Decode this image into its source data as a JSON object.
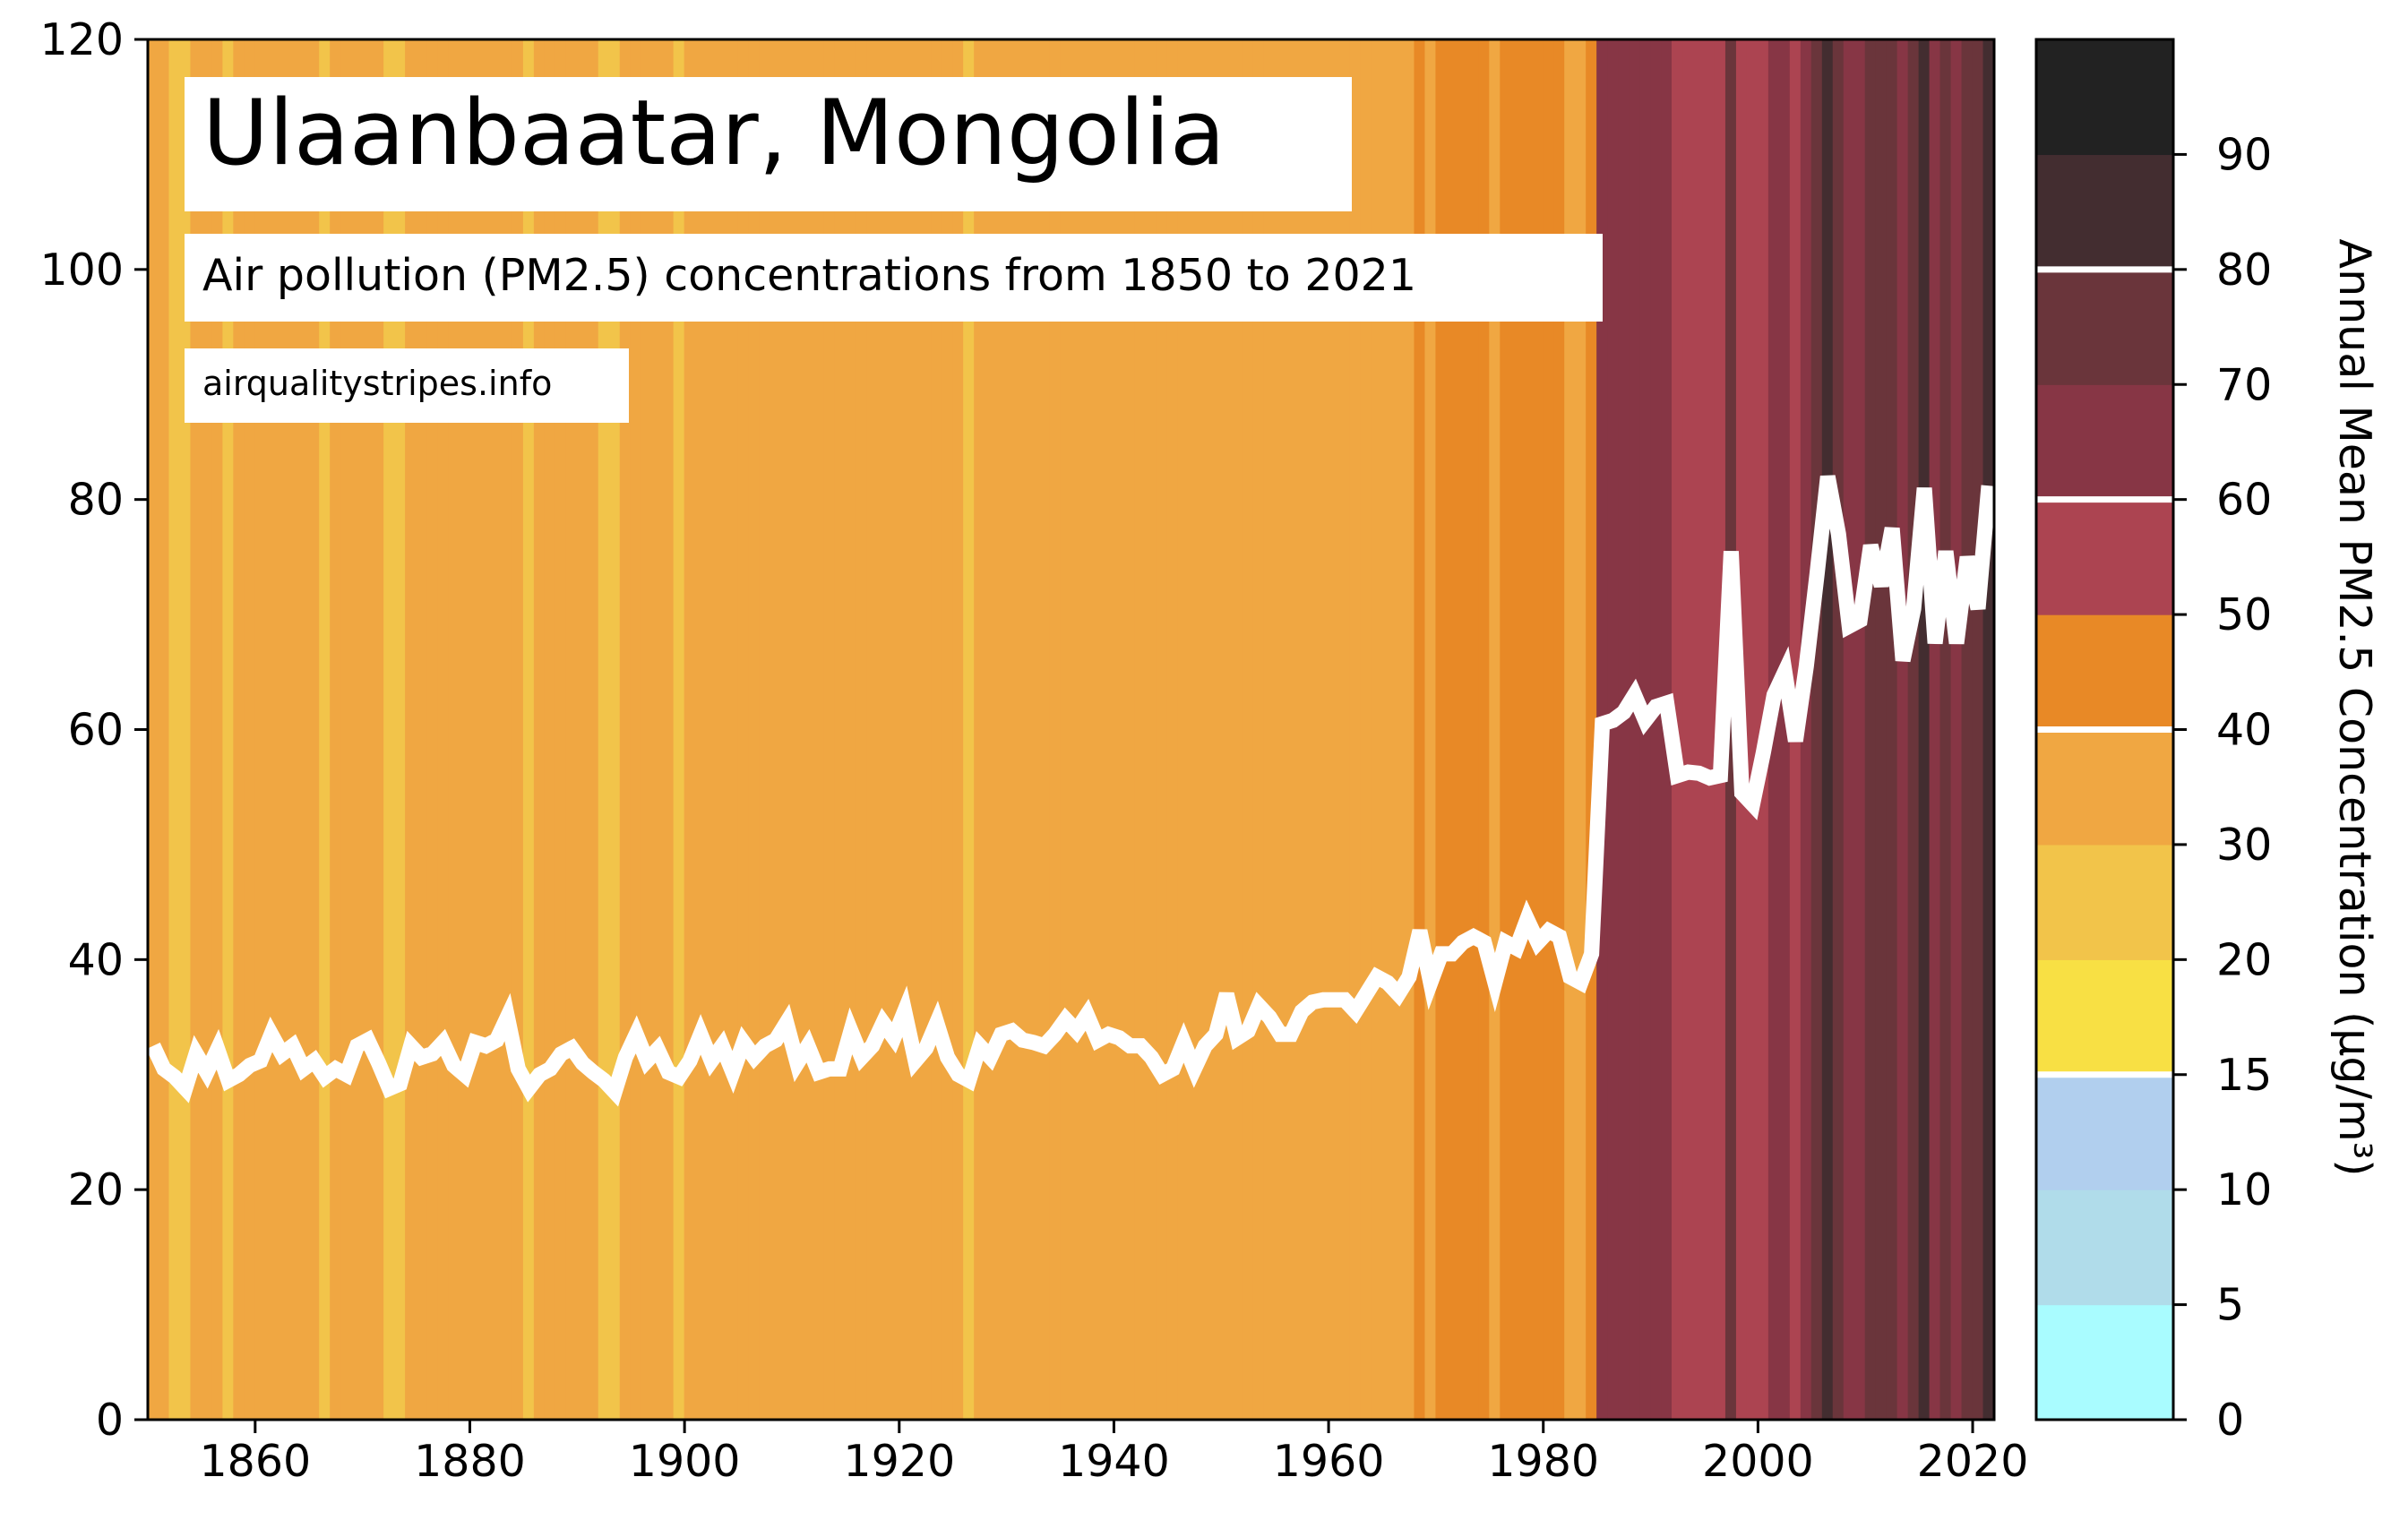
{
  "chart_data": {
    "type": "line",
    "title": "Ulaanbaatar, Mongolia",
    "subtitle": "Air pollution (PM2.5) concentrations from 1850 to 2021",
    "source": "airqualitystripes.info",
    "xlim": [
      1850,
      2022
    ],
    "ylim": [
      0,
      120
    ],
    "x_ticks": [
      "1860",
      "1880",
      "1900",
      "1920",
      "1940",
      "1960",
      "1980",
      "2000",
      "2020"
    ],
    "y_ticks": [
      "0",
      "20",
      "40",
      "60",
      "80",
      "100",
      "120"
    ],
    "grid": false,
    "line_color": "#ffffff",
    "series": [
      {
        "x": [
          1850,
          1851,
          1852,
          1853,
          1854,
          1855,
          1856,
          1857,
          1858,
          1859,
          1860,
          1861,
          1862,
          1863,
          1864,
          1865,
          1866,
          1867,
          1868,
          1869,
          1870,
          1871,
          1872,
          1873,
          1874,
          1875,
          1876,
          1877,
          1878,
          1879,
          1880,
          1881,
          1882,
          1883,
          1884,
          1885,
          1886,
          1887,
          1888,
          1889,
          1890,
          1891,
          1892,
          1893,
          1894,
          1895,
          1896,
          1897,
          1898,
          1899,
          1900,
          1901,
          1902,
          1903,
          1904,
          1905,
          1906,
          1907,
          1908,
          1909,
          1910,
          1911,
          1912,
          1913,
          1914,
          1915,
          1916,
          1917,
          1918,
          1919,
          1920,
          1921,
          1922,
          1923,
          1924,
          1925,
          1926,
          1927,
          1928,
          1929,
          1930,
          1931,
          1932,
          1933,
          1934,
          1935,
          1936,
          1937,
          1938,
          1939,
          1940,
          1941,
          1942,
          1943,
          1944,
          1945,
          1946,
          1947,
          1948,
          1949,
          1950,
          1951,
          1952,
          1953,
          1954,
          1955,
          1956,
          1957,
          1958,
          1959,
          1960,
          1961,
          1962,
          1963,
          1964,
          1965,
          1966,
          1967,
          1968,
          1969,
          1970,
          1971,
          1972,
          1973,
          1974,
          1975,
          1976,
          1977,
          1978,
          1979,
          1980,
          1981,
          1982,
          1983,
          1984,
          1985,
          1986,
          1987,
          1988,
          1989,
          1990,
          1991,
          1992,
          1993,
          1994,
          1995,
          1996,
          1997,
          1998,
          1999,
          2000,
          2001,
          2002,
          2003,
          2004,
          2005,
          2006,
          2007,
          2008,
          2009,
          2010,
          2011,
          2012,
          2013,
          2014,
          2015,
          2016,
          2017,
          2018,
          2019,
          2020,
          2021
        ],
        "values": [
          32.5,
          30.5,
          29.8,
          28.8,
          31.8,
          30.2,
          32.2,
          29.5,
          30,
          30.8,
          31.2,
          33.5,
          31.8,
          32.5,
          30.5,
          31.2,
          29.8,
          30.5,
          30,
          32.5,
          33,
          31,
          28.8,
          29.2,
          32.5,
          31.5,
          31.8,
          32.8,
          30.8,
          30,
          32.8,
          32.5,
          33,
          35,
          30.5,
          28.8,
          30,
          30.5,
          31.8,
          32.3,
          31,
          30.2,
          29.5,
          28.5,
          31.5,
          33.5,
          31.2,
          32.2,
          30.2,
          29.8,
          31.2,
          33.5,
          31.2,
          32.5,
          30.2,
          32.8,
          31.5,
          32.5,
          33,
          34.5,
          31,
          32.5,
          30.2,
          30.5,
          30.5,
          33.8,
          31.5,
          32.5,
          34.5,
          33.2,
          35.5,
          31.2,
          32.3,
          34.5,
          31.5,
          30,
          29.5,
          32.5,
          31.5,
          33.5,
          33.8,
          33,
          32.8,
          32.5,
          33.5,
          34.8,
          33.8,
          35.2,
          33,
          33.5,
          33.2,
          32.5,
          32.5,
          31.5,
          30,
          30.5,
          32.8,
          30.5,
          32.5,
          33.5,
          37,
          33.2,
          33.8,
          36,
          35,
          33.5,
          33.5,
          35.5,
          36.3,
          36.5,
          36.5,
          36.5,
          35.5,
          37,
          38.5,
          38,
          37,
          38.5,
          42.5,
          38,
          40.5,
          40.5,
          41.5,
          42,
          41.5,
          38,
          41.5,
          41,
          43.5,
          41.5,
          42.5,
          42,
          38.5,
          38,
          40.5,
          60.5,
          60.8,
          61.5,
          63,
          60.8,
          62,
          62.3,
          56,
          56.3,
          56.2,
          55.8,
          56,
          75.5,
          54.5,
          53.5,
          58,
          63,
          65,
          59,
          65.5,
          73.5,
          82,
          77,
          69,
          69.5,
          76,
          72.5,
          77.5,
          66,
          70.5,
          81,
          67.5,
          75.5,
          67.5,
          75,
          70.5,
          81.2
        ]
      }
    ],
    "colorbar": {
      "label": "Annual Mean PM2.5 Concentration (µg/m³)",
      "tick_labels": [
        "0",
        "5",
        "10",
        "15",
        "20",
        "30",
        "40",
        "50",
        "60",
        "70",
        "80",
        "90"
      ],
      "bins": [
        {
          "range": "0-5",
          "color": "#a9fcff"
        },
        {
          "range": "5-10",
          "color": "#b0dcea"
        },
        {
          "range": "10-15",
          "color": "#b1cfee"
        },
        {
          "range": "15-20",
          "color": "#f8e044"
        },
        {
          "range": "20-30",
          "color": "#f2c44a"
        },
        {
          "range": "30-40",
          "color": "#f0a742"
        },
        {
          "range": "40-50",
          "color": "#e88926"
        },
        {
          "range": "50-60",
          "color": "#ac4451"
        },
        {
          "range": "60-70",
          "color": "#873645"
        },
        {
          "range": "70-80",
          "color": "#6a353b"
        },
        {
          "range": "80-90",
          "color": "#432d30"
        },
        {
          "range": "90+",
          "color": "#222222"
        }
      ]
    }
  }
}
